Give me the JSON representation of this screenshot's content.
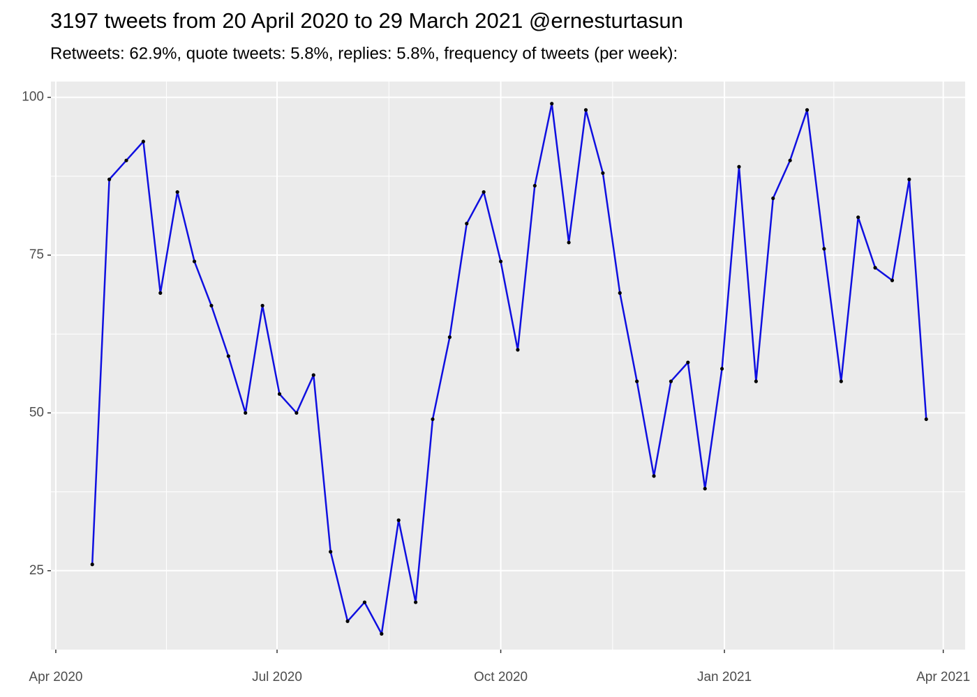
{
  "chart_data": {
    "type": "line",
    "title": "3197 tweets from 20 April 2020 to 29 March 2021 @ernesturtasun",
    "subtitle": "Retweets: 62.9%, quote tweets: 5.8%, replies: 5.8%, frequency of tweets (per week):",
    "x": [
      "2020-04-16",
      "2020-04-23",
      "2020-04-30",
      "2020-05-07",
      "2020-05-14",
      "2020-05-21",
      "2020-05-28",
      "2020-06-04",
      "2020-06-11",
      "2020-06-18",
      "2020-06-25",
      "2020-07-02",
      "2020-07-09",
      "2020-07-16",
      "2020-07-23",
      "2020-07-30",
      "2020-08-06",
      "2020-08-13",
      "2020-08-20",
      "2020-08-27",
      "2020-09-03",
      "2020-09-10",
      "2020-09-17",
      "2020-09-24",
      "2020-10-01",
      "2020-10-08",
      "2020-10-15",
      "2020-10-22",
      "2020-10-29",
      "2020-11-05",
      "2020-11-12",
      "2020-11-19",
      "2020-11-26",
      "2020-12-03",
      "2020-12-10",
      "2020-12-17",
      "2020-12-24",
      "2020-12-31",
      "2021-01-07",
      "2021-01-14",
      "2021-01-21",
      "2021-01-28",
      "2021-02-04",
      "2021-02-11",
      "2021-02-18",
      "2021-02-25",
      "2021-03-04",
      "2021-03-11",
      "2021-03-18",
      "2021-03-25"
    ],
    "series": [
      {
        "name": "tweets",
        "color": "#0f0fe0",
        "point_color": "#000000",
        "values": [
          26,
          87,
          90,
          93,
          69,
          85,
          74,
          67,
          59,
          50,
          67,
          53,
          50,
          56,
          28,
          17,
          20,
          15,
          33,
          20,
          49,
          62,
          80,
          85,
          74,
          60,
          86,
          99,
          77,
          98,
          88,
          69,
          55,
          40,
          55,
          58,
          38,
          57,
          89,
          55,
          84,
          90,
          98,
          76,
          55,
          81,
          73,
          71,
          87,
          49
        ]
      }
    ],
    "xlim": [
      "2020-03-30",
      "2021-04-10"
    ],
    "xticks": [
      {
        "value": "2020-04-01",
        "label": "Apr 2020"
      },
      {
        "value": "2020-07-01",
        "label": "Jul 2020"
      },
      {
        "value": "2020-10-01",
        "label": "Oct 2020"
      },
      {
        "value": "2021-01-01",
        "label": "Jan 2021"
      },
      {
        "value": "2021-04-01",
        "label": "Apr 2021"
      }
    ],
    "ylim": [
      12.5,
      102.5
    ],
    "yticks": [
      25,
      50,
      75,
      100
    ],
    "grid": true
  }
}
